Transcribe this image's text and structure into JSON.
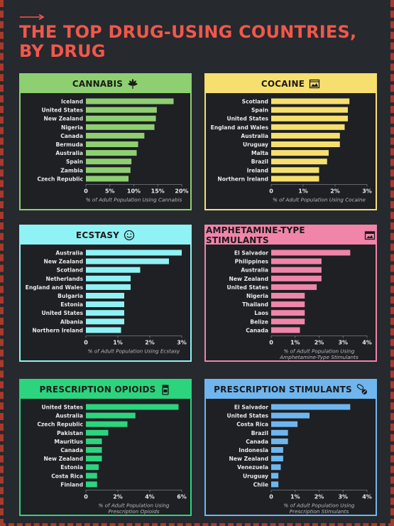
{
  "title": "THE TOP DRUG-USING COUNTRIES,\nBY DRUG",
  "colors": {
    "background": "#26292e",
    "title": "#f0584a",
    "border_accent": "#a83a2c",
    "cannabis": "#8ecf72",
    "cocaine": "#f6df6e",
    "ecstasy": "#8ff2f4",
    "amphetamine": "#f084a9",
    "opioids": "#2dd47e",
    "stimulants": "#6fb6ef"
  },
  "chart_data": [
    {
      "type": "bar",
      "orientation": "horizontal",
      "title": "CANNABIS",
      "icon": "cannabis-leaf-icon",
      "categories": [
        "Iceland",
        "United States",
        "New Zealand",
        "Nigeria",
        "Canada",
        "Bermuda",
        "Australia",
        "Spain",
        "Zambia",
        "Czech Republic"
      ],
      "values": [
        18.3,
        14.8,
        14.6,
        14.3,
        12.2,
        10.9,
        10.6,
        9.5,
        9.3,
        8.9
      ],
      "xlim": [
        0,
        20
      ],
      "ticks": [
        "0",
        "5%",
        "10%",
        "15%",
        "20%"
      ],
      "xlabel": "% of Adult Population Using Cannabis",
      "color": "#8ecf72"
    },
    {
      "type": "bar",
      "orientation": "horizontal",
      "title": "COCAINE",
      "icon": "cocaine-powder-icon",
      "categories": [
        "Scotland",
        "Spain",
        "United States",
        "England and Wales",
        "Australia",
        "Uruguay",
        "Malta",
        "Brazil",
        "Ireland",
        "Northern Ireland"
      ],
      "values": [
        2.45,
        2.4,
        2.4,
        2.3,
        2.15,
        2.15,
        1.8,
        1.75,
        1.5,
        1.5
      ],
      "xlim": [
        0,
        3
      ],
      "ticks": [
        "0",
        "1%",
        "2%",
        "3%"
      ],
      "xlabel": "% of Adult Population Using Cocaine",
      "color": "#f6df6e"
    },
    {
      "type": "bar",
      "orientation": "horizontal",
      "title": "ECSTASY",
      "icon": "smiley-face-icon",
      "categories": [
        "Australia",
        "New Zealand",
        "Scotland",
        "Netherlands",
        "England and Wales",
        "Bulgaria",
        "Estonia",
        "United States",
        "Albania",
        "Northern Ireland"
      ],
      "values": [
        3.0,
        2.6,
        1.7,
        1.4,
        1.4,
        1.2,
        1.2,
        1.2,
        1.2,
        1.1
      ],
      "xlim": [
        0,
        3
      ],
      "ticks": [
        "0",
        "1%",
        "2%",
        "3%"
      ],
      "xlabel": "% of Adult Population Using Ecstasy",
      "color": "#8ff2f4"
    },
    {
      "type": "bar",
      "orientation": "horizontal",
      "title": "AMPHETAMINE-TYPE STIMULANTS",
      "icon": "pill-box-icon",
      "categories": [
        "El Salvador",
        "Philippines",
        "Australia",
        "New Zealand",
        "United States",
        "Nigeria",
        "Thailand",
        "Laos",
        "Belize",
        "Canada"
      ],
      "values": [
        3.3,
        2.1,
        2.1,
        2.1,
        1.9,
        1.4,
        1.4,
        1.4,
        1.4,
        1.2
      ],
      "xlim": [
        0,
        4
      ],
      "ticks": [
        "0",
        "1%",
        "2%",
        "3%",
        "4%"
      ],
      "xlabel": "% of Adult Population Using\nAmphetamine-Type Stimulants",
      "color": "#f084a9"
    },
    {
      "type": "bar",
      "orientation": "horizontal",
      "title": "PRESCRIPTION OPIOIDS",
      "icon": "pill-bottle-icon",
      "categories": [
        "United States",
        "Australia",
        "Czech Republic",
        "Pakistan",
        "Mauritius",
        "Canada",
        "New Zealand",
        "Estonia",
        "Costa Rica",
        "Finland"
      ],
      "values": [
        5.8,
        3.1,
        2.6,
        1.4,
        1.0,
        1.0,
        1.0,
        0.8,
        0.7,
        0.7
      ],
      "xlim": [
        0,
        6
      ],
      "ticks": [
        "0",
        "2%",
        "4%",
        "6%"
      ],
      "xlabel": "% of Adult Population Using\nPrescription Opioids",
      "color": "#2dd47e"
    },
    {
      "type": "bar",
      "orientation": "horizontal",
      "title": "PRESCRIPTION STIMULANTS",
      "icon": "capsule-icon",
      "categories": [
        "El Salvador",
        "United States",
        "Costa Rica",
        "Brazil",
        "Canada",
        "Indonesia",
        "New Zealand",
        "Venezuela",
        "Uruguay",
        "Chile"
      ],
      "values": [
        3.3,
        1.6,
        1.1,
        0.7,
        0.7,
        0.5,
        0.5,
        0.4,
        0.3,
        0.3
      ],
      "xlim": [
        0,
        4
      ],
      "ticks": [
        "0",
        "1%",
        "2%",
        "3%",
        "4%"
      ],
      "xlabel": "% of Adult Population Using\nPrescription Stimulants",
      "color": "#6fb6ef"
    }
  ]
}
